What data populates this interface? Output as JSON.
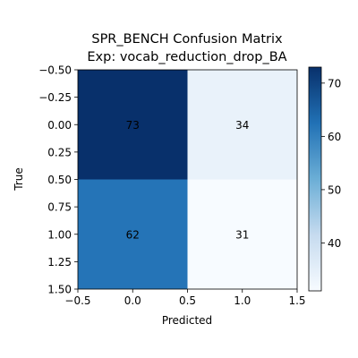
{
  "chart_data": {
    "type": "heatmap",
    "title": "SPR_BENCH Confusion Matrix",
    "subtitle": "Exp: vocab_reduction_drop_BA",
    "xlabel": "Predicted",
    "ylabel": "True",
    "matrix": [
      [
        73,
        34
      ],
      [
        62,
        31
      ]
    ],
    "xlim": [
      -0.5,
      1.5
    ],
    "ylim": [
      1.5,
      -0.5
    ],
    "x_ticks": [
      "−0.5",
      "0.0",
      "0.5",
      "1.0",
      "1.5"
    ],
    "x_tick_values": [
      -0.5,
      0,
      0.5,
      1,
      1.5
    ],
    "y_ticks": [
      "−0.50",
      "−0.25",
      "0.00",
      "0.25",
      "0.50",
      "0.75",
      "1.00",
      "1.25",
      "1.50"
    ],
    "y_tick_values": [
      -0.5,
      -0.25,
      0,
      0.25,
      0.5,
      0.75,
      1,
      1.25,
      1.5
    ],
    "colorbar_ticks": [
      "40",
      "50",
      "60",
      "70"
    ],
    "colorbar_tick_values": [
      40,
      50,
      60,
      70
    ],
    "colormap": "Blues",
    "color_range": [
      31,
      73
    ],
    "grid": false
  }
}
